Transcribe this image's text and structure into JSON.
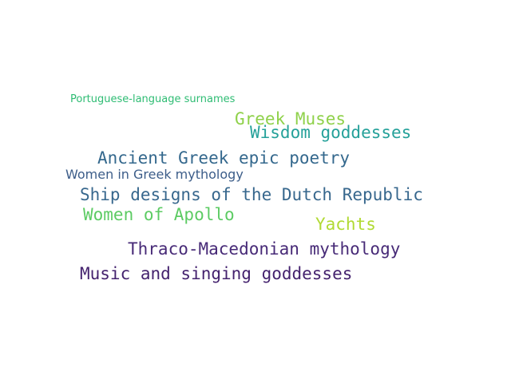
{
  "words": [
    {
      "text": "Portuguese-language surnames",
      "color": "#2ebc73"
    },
    {
      "text": "Greek Muses",
      "color": "#8fd14a"
    },
    {
      "text": "Wisdom goddesses",
      "color": "#25a19a"
    },
    {
      "text": "Ancient Greek epic poetry",
      "color": "#34688d"
    },
    {
      "text": "Women in Greek mythology",
      "color": "#3c5d89"
    },
    {
      "text": "Ship designs of the Dutch Republic",
      "color": "#37678d"
    },
    {
      "text": "Women of Apollo",
      "color": "#5ccb63"
    },
    {
      "text": "Yachts",
      "color": "#b1da33"
    },
    {
      "text": "Thraco-Macedonian mythology",
      "color": "#472a77"
    },
    {
      "text": "Music and singing goddesses",
      "color": "#44226e"
    }
  ]
}
